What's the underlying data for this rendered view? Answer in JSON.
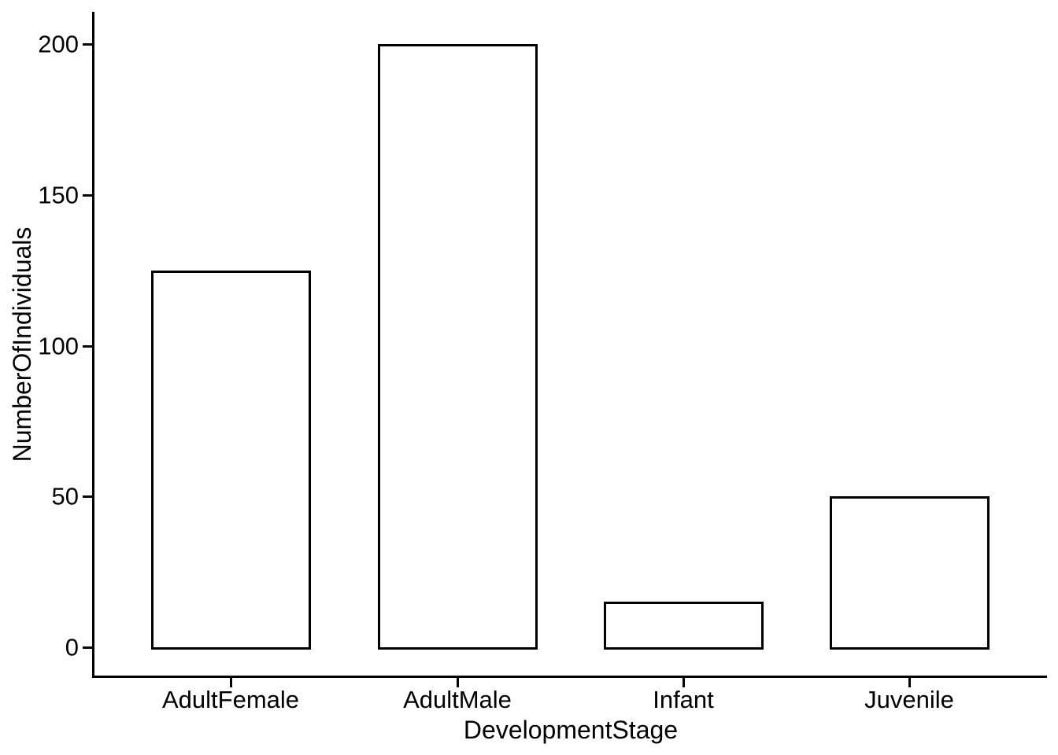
{
  "chart_data": {
    "type": "bar",
    "title": "",
    "xlabel": "DevelopmentStage",
    "ylabel": "NumberOfIndividuals",
    "categories": [
      "AdultFemale",
      "AdultMale",
      "Infant",
      "Juvenile"
    ],
    "values": [
      125,
      200,
      15,
      50
    ],
    "y_ticks": [
      0,
      50,
      100,
      150,
      200
    ],
    "ylim": [
      0,
      200
    ],
    "grid": false,
    "legend": false,
    "style": "ggplot-classic",
    "colors": {
      "background": "#ffffff",
      "bar_fill": "#ffffff",
      "bar_stroke": "#000000",
      "axis": "#000000",
      "text": "#000000"
    }
  }
}
